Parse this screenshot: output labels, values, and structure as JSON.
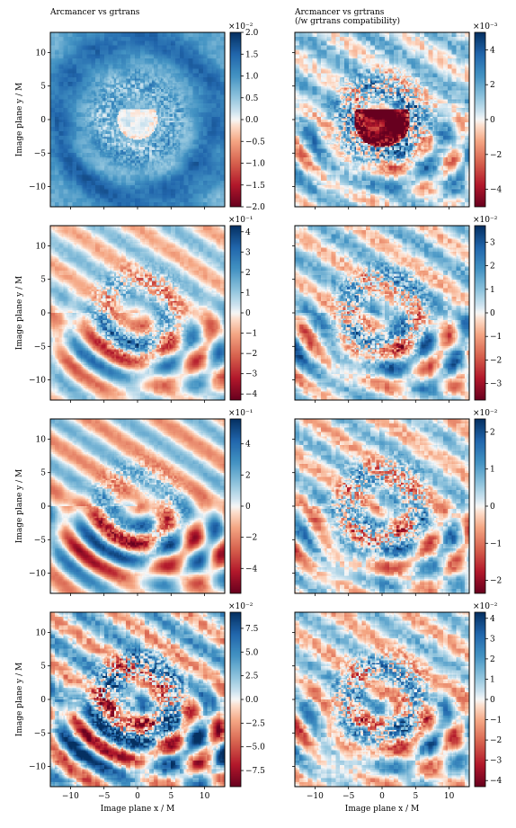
{
  "figure": {
    "col_titles": [
      "Arcmancer vs grtrans",
      "Arcmancer vs grtrans\n(/w grtrans compatibility)"
    ],
    "xlabel": "Image plane x / M",
    "ylabel": "Image plane y / M"
  },
  "chart_data": [
    {
      "type": "heatmap",
      "title": "Arcmancer vs grtrans",
      "row": 0,
      "col": 0,
      "xlim": [
        -13,
        13
      ],
      "ylim": [
        -13,
        13
      ],
      "xticks": [
        -10,
        -5,
        0,
        5,
        10
      ],
      "yticks": [
        -10,
        -5,
        0,
        5,
        10
      ],
      "colormap": "RdBu",
      "colorbar": {
        "scale_label": "×10⁻²",
        "range": [
          -2.0,
          2.0
        ],
        "ticks": [
          -2.0,
          -1.5,
          -1.0,
          -0.5,
          0.0,
          0.5,
          1.0,
          1.5,
          2.0
        ],
        "tick_labels": [
          "−2.0",
          "−1.5",
          "−1.0",
          "−0.5",
          "0.0",
          "0.5",
          "1.0",
          "1.5",
          "2.0"
        ]
      },
      "ylabel": "Image plane y / M",
      "xlabel": ""
    },
    {
      "type": "heatmap",
      "title": "Arcmancer vs grtrans\n(/w grtrans compatibility)",
      "row": 0,
      "col": 1,
      "xlim": [
        -13,
        13
      ],
      "ylim": [
        -13,
        13
      ],
      "xticks": [
        -10,
        -5,
        0,
        5,
        10
      ],
      "yticks": [
        -10,
        -5,
        0,
        5,
        10
      ],
      "colormap": "RdBu",
      "colorbar": {
        "scale_label": "×10⁻³",
        "range": [
          -5,
          5
        ],
        "ticks": [
          -4,
          -2,
          0,
          2,
          4
        ],
        "tick_labels": [
          "−4",
          "−2",
          "0",
          "2",
          "4"
        ]
      },
      "ylabel": "",
      "xlabel": ""
    },
    {
      "type": "heatmap",
      "title": "",
      "row": 1,
      "col": 0,
      "xlim": [
        -13,
        13
      ],
      "ylim": [
        -13,
        13
      ],
      "xticks": [
        -10,
        -5,
        0,
        5,
        10
      ],
      "yticks": [
        -10,
        -5,
        0,
        5,
        10
      ],
      "colormap": "RdBu",
      "colorbar": {
        "scale_label": "×10⁻¹",
        "range": [
          -4.3,
          4.3
        ],
        "ticks": [
          -4,
          -3,
          -2,
          -1,
          0,
          1,
          2,
          3,
          4
        ],
        "tick_labels": [
          "−4",
          "−3",
          "−2",
          "−1",
          "0",
          "1",
          "2",
          "3",
          "4"
        ]
      },
      "ylabel": "Image plane y / M",
      "xlabel": ""
    },
    {
      "type": "heatmap",
      "title": "",
      "row": 1,
      "col": 1,
      "xlim": [
        -13,
        13
      ],
      "ylim": [
        -13,
        13
      ],
      "xticks": [
        -10,
        -5,
        0,
        5,
        10
      ],
      "yticks": [
        -10,
        -5,
        0,
        5,
        10
      ],
      "colormap": "RdBu",
      "colorbar": {
        "scale_label": "×10⁻²",
        "range": [
          -3.7,
          3.7
        ],
        "ticks": [
          -3,
          -2,
          -1,
          0,
          1,
          2,
          3
        ],
        "tick_labels": [
          "−3",
          "−2",
          "−1",
          "0",
          "1",
          "2",
          "3"
        ]
      },
      "ylabel": "",
      "xlabel": ""
    },
    {
      "type": "heatmap",
      "title": "",
      "row": 2,
      "col": 0,
      "xlim": [
        -13,
        13
      ],
      "ylim": [
        -13,
        13
      ],
      "xticks": [
        -10,
        -5,
        0,
        5,
        10
      ],
      "yticks": [
        -10,
        -5,
        0,
        5,
        10
      ],
      "colormap": "RdBu",
      "colorbar": {
        "scale_label": "×10⁻¹",
        "range": [
          -5.6,
          5.6
        ],
        "ticks": [
          -4,
          -2,
          0,
          2,
          4
        ],
        "tick_labels": [
          "−4",
          "−2",
          "0",
          "2",
          "4"
        ]
      },
      "ylabel": "Image plane y / M",
      "xlabel": ""
    },
    {
      "type": "heatmap",
      "title": "",
      "row": 2,
      "col": 1,
      "xlim": [
        -13,
        13
      ],
      "ylim": [
        -13,
        13
      ],
      "xticks": [
        -10,
        -5,
        0,
        5,
        10
      ],
      "yticks": [
        -10,
        -5,
        0,
        5,
        10
      ],
      "colormap": "RdBu",
      "colorbar": {
        "scale_label": "×10⁻²",
        "range": [
          -2.35,
          2.35
        ],
        "ticks": [
          -2,
          -1,
          0,
          1,
          2
        ],
        "tick_labels": [
          "−2",
          "−1",
          "0",
          "1",
          "2"
        ]
      },
      "ylabel": "",
      "xlabel": ""
    },
    {
      "type": "heatmap",
      "title": "",
      "row": 3,
      "col": 0,
      "xlim": [
        -13,
        13
      ],
      "ylim": [
        -13,
        13
      ],
      "xticks": [
        -10,
        -5,
        0,
        5,
        10
      ],
      "yticks": [
        -10,
        -5,
        0,
        5,
        10
      ],
      "colormap": "RdBu",
      "colorbar": {
        "scale_label": "×10⁻²",
        "range": [
          -9.2,
          9.2
        ],
        "ticks": [
          -7.5,
          -5.0,
          -2.5,
          0.0,
          2.5,
          5.0,
          7.5
        ],
        "tick_labels": [
          "−7.5",
          "−5.0",
          "−2.5",
          "0.0",
          "2.5",
          "5.0",
          "7.5"
        ]
      },
      "ylabel": "Image plane y / M",
      "xlabel": "Image plane x / M"
    },
    {
      "type": "heatmap",
      "title": "",
      "row": 3,
      "col": 1,
      "xlim": [
        -13,
        13
      ],
      "ylim": [
        -13,
        13
      ],
      "xticks": [
        -10,
        -5,
        0,
        5,
        10
      ],
      "yticks": [
        -10,
        -5,
        0,
        5,
        10
      ],
      "colormap": "RdBu",
      "colorbar": {
        "scale_label": "×10⁻²",
        "range": [
          -4.3,
          4.3
        ],
        "ticks": [
          -4,
          -3,
          -2,
          -1,
          0,
          1,
          2,
          3,
          4
        ],
        "tick_labels": [
          "−4",
          "−3",
          "−2",
          "−1",
          "0",
          "1",
          "2",
          "3",
          "4"
        ]
      },
      "ylabel": "",
      "xlabel": "Image plane x / M"
    }
  ]
}
